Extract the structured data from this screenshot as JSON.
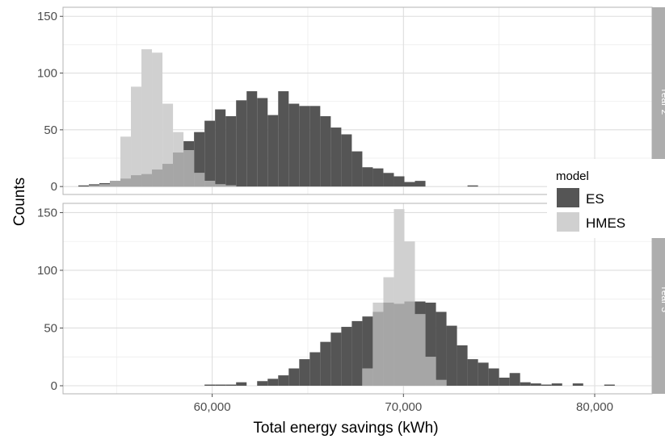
{
  "chart_data": {
    "type": "bar",
    "subtype": "faceted-histogram",
    "title": "",
    "xlabel": "Total energy savings (kWh)",
    "ylabel": "Counts",
    "xlim": [
      52200,
      83000
    ],
    "ylim": [
      -7,
      158
    ],
    "x_ticks": [
      60000,
      70000,
      80000
    ],
    "x_tick_labels": [
      "60,000",
      "70,000",
      "80,000"
    ],
    "y_ticks": [
      0,
      50,
      100,
      150
    ],
    "y_tick_labels": [
      "0",
      "50",
      "100",
      "150"
    ],
    "bin_width": 550,
    "grid": true,
    "legend": {
      "title": "model",
      "position": "right",
      "items": [
        {
          "name": "ES",
          "color": "#555555"
        },
        {
          "name": "HMES",
          "color": "#d0d0d0"
        }
      ]
    },
    "overlap_color": "#a6a6a6",
    "panels": [
      {
        "label": "Year 2",
        "series": [
          {
            "name": "ES",
            "bins": [
              {
                "x0": 53000,
                "count": 1
              },
              {
                "x0": 53550,
                "count": 2
              },
              {
                "x0": 54100,
                "count": 3
              },
              {
                "x0": 54650,
                "count": 5
              },
              {
                "x0": 55200,
                "count": 7
              },
              {
                "x0": 55750,
                "count": 10
              },
              {
                "x0": 56300,
                "count": 11
              },
              {
                "x0": 56850,
                "count": 15
              },
              {
                "x0": 57400,
                "count": 20
              },
              {
                "x0": 57950,
                "count": 30
              },
              {
                "x0": 58500,
                "count": 40
              },
              {
                "x0": 59050,
                "count": 48
              },
              {
                "x0": 59600,
                "count": 58
              },
              {
                "x0": 60150,
                "count": 68
              },
              {
                "x0": 60700,
                "count": 62
              },
              {
                "x0": 61250,
                "count": 76
              },
              {
                "x0": 61800,
                "count": 84
              },
              {
                "x0": 62350,
                "count": 78
              },
              {
                "x0": 62900,
                "count": 63
              },
              {
                "x0": 63450,
                "count": 84
              },
              {
                "x0": 64000,
                "count": 73
              },
              {
                "x0": 64550,
                "count": 71
              },
              {
                "x0": 65100,
                "count": 71
              },
              {
                "x0": 65650,
                "count": 62
              },
              {
                "x0": 66200,
                "count": 52
              },
              {
                "x0": 66750,
                "count": 46
              },
              {
                "x0": 67300,
                "count": 31
              },
              {
                "x0": 67850,
                "count": 17
              },
              {
                "x0": 68400,
                "count": 16
              },
              {
                "x0": 68950,
                "count": 12
              },
              {
                "x0": 69500,
                "count": 9
              },
              {
                "x0": 70050,
                "count": 4
              },
              {
                "x0": 70600,
                "count": 5
              },
              {
                "x0": 73350,
                "count": 1
              }
            ]
          },
          {
            "name": "HMES",
            "bins": [
              {
                "x0": 53550,
                "count": 1
              },
              {
                "x0": 54100,
                "count": 2
              },
              {
                "x0": 54650,
                "count": 5
              },
              {
                "x0": 55200,
                "count": 44
              },
              {
                "x0": 55750,
                "count": 88
              },
              {
                "x0": 56300,
                "count": 121
              },
              {
                "x0": 56850,
                "count": 118
              },
              {
                "x0": 57400,
                "count": 73
              },
              {
                "x0": 57950,
                "count": 48
              },
              {
                "x0": 58500,
                "count": 32
              },
              {
                "x0": 59050,
                "count": 12
              },
              {
                "x0": 59600,
                "count": 5
              },
              {
                "x0": 60150,
                "count": 2
              },
              {
                "x0": 60700,
                "count": 1
              }
            ]
          }
        ]
      },
      {
        "label": "Year 3",
        "series": [
          {
            "name": "ES",
            "bins": [
              {
                "x0": 59600,
                "count": 1
              },
              {
                "x0": 60150,
                "count": 1
              },
              {
                "x0": 60700,
                "count": 1
              },
              {
                "x0": 61250,
                "count": 3
              },
              {
                "x0": 62350,
                "count": 4
              },
              {
                "x0": 62900,
                "count": 6
              },
              {
                "x0": 63450,
                "count": 9
              },
              {
                "x0": 64000,
                "count": 15
              },
              {
                "x0": 64550,
                "count": 23
              },
              {
                "x0": 65100,
                "count": 29
              },
              {
                "x0": 65650,
                "count": 38
              },
              {
                "x0": 66200,
                "count": 46
              },
              {
                "x0": 66750,
                "count": 51
              },
              {
                "x0": 67300,
                "count": 56
              },
              {
                "x0": 67850,
                "count": 60
              },
              {
                "x0": 68400,
                "count": 64
              },
              {
                "x0": 68950,
                "count": 72
              },
              {
                "x0": 69500,
                "count": 71
              },
              {
                "x0": 70050,
                "count": 73
              },
              {
                "x0": 70600,
                "count": 73
              },
              {
                "x0": 71150,
                "count": 72
              },
              {
                "x0": 71700,
                "count": 64
              },
              {
                "x0": 72250,
                "count": 52
              },
              {
                "x0": 72800,
                "count": 35
              },
              {
                "x0": 73350,
                "count": 23
              },
              {
                "x0": 73900,
                "count": 20
              },
              {
                "x0": 74450,
                "count": 15
              },
              {
                "x0": 75000,
                "count": 7
              },
              {
                "x0": 75550,
                "count": 11
              },
              {
                "x0": 76100,
                "count": 3
              },
              {
                "x0": 76650,
                "count": 2
              },
              {
                "x0": 77200,
                "count": 1
              },
              {
                "x0": 77750,
                "count": 2
              },
              {
                "x0": 78850,
                "count": 2
              },
              {
                "x0": 80500,
                "count": 1
              }
            ]
          },
          {
            "name": "HMES",
            "bins": [
              {
                "x0": 67850,
                "count": 15
              },
              {
                "x0": 68400,
                "count": 72
              },
              {
                "x0": 68950,
                "count": 94
              },
              {
                "x0": 69500,
                "count": 153
              },
              {
                "x0": 70050,
                "count": 125
              },
              {
                "x0": 70600,
                "count": 62
              },
              {
                "x0": 71150,
                "count": 25
              },
              {
                "x0": 71700,
                "count": 5
              }
            ]
          }
        ]
      }
    ]
  }
}
